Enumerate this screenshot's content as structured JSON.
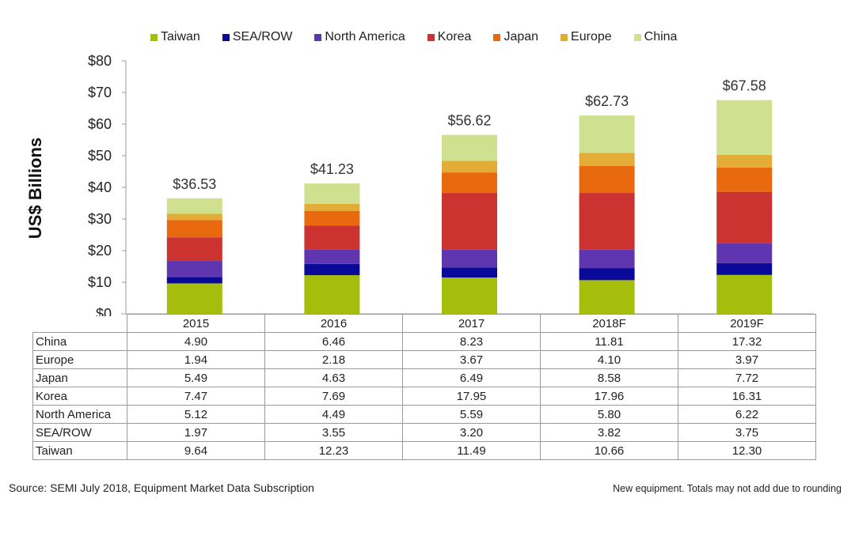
{
  "chart_data": {
    "type": "bar",
    "stacked": true,
    "title": "",
    "xlabel": "",
    "ylabel": "US$ Billions",
    "ylim": [
      0,
      80
    ],
    "yticks": [
      0,
      10,
      20,
      30,
      40,
      50,
      60,
      70,
      80
    ],
    "ytick_labels": [
      "$0",
      "$10",
      "$20",
      "$30",
      "$40",
      "$50",
      "$60",
      "$70",
      "$80"
    ],
    "grid": false,
    "legend_position": "top",
    "categories": [
      "2015",
      "2016",
      "2017",
      "2018F",
      "2019F"
    ],
    "series": [
      {
        "name": "Taiwan",
        "color": "#a5bd0b",
        "values": [
          9.64,
          12.23,
          11.49,
          10.66,
          12.3
        ]
      },
      {
        "name": "SEA/ROW",
        "color": "#0a0a9a",
        "values": [
          1.97,
          3.55,
          3.2,
          3.82,
          3.75
        ]
      },
      {
        "name": "North America",
        "color": "#5f35b0",
        "values": [
          5.12,
          4.49,
          5.59,
          5.8,
          6.22
        ]
      },
      {
        "name": "Korea",
        "color": "#cc3330",
        "values": [
          7.47,
          7.69,
          17.95,
          17.96,
          16.31
        ]
      },
      {
        "name": "Japan",
        "color": "#e8690e",
        "values": [
          5.49,
          4.63,
          6.49,
          8.58,
          7.72
        ]
      },
      {
        "name": "Europe",
        "color": "#e3ad35",
        "values": [
          1.94,
          2.18,
          3.67,
          4.1,
          3.97
        ]
      },
      {
        "name": "China",
        "color": "#cfe08f",
        "values": [
          4.9,
          6.46,
          8.23,
          11.81,
          17.32
        ]
      }
    ],
    "totals": [
      "$36.53",
      "$41.23",
      "$56.62",
      "$62.73",
      "$67.58"
    ],
    "table": {
      "row_order": [
        "China",
        "Europe",
        "Japan",
        "Korea",
        "North America",
        "SEA/ROW",
        "Taiwan"
      ],
      "rows": [
        {
          "label": "China",
          "values": [
            "4.90",
            "6.46",
            "8.23",
            "11.81",
            "17.32"
          ]
        },
        {
          "label": "Europe",
          "values": [
            "1.94",
            "2.18",
            "3.67",
            "4.10",
            "3.97"
          ]
        },
        {
          "label": "Japan",
          "values": [
            "5.49",
            "4.63",
            "6.49",
            "8.58",
            "7.72"
          ]
        },
        {
          "label": "Korea",
          "values": [
            "7.47",
            "7.69",
            "17.95",
            "17.96",
            "16.31"
          ]
        },
        {
          "label": "North America",
          "values": [
            "5.12",
            "4.49",
            "5.59",
            "5.80",
            "6.22"
          ]
        },
        {
          "label": "SEA/ROW",
          "values": [
            "1.97",
            "3.55",
            "3.20",
            "3.82",
            "3.75"
          ]
        },
        {
          "label": "Taiwan",
          "values": [
            "9.64",
            "12.23",
            "11.49",
            "10.66",
            "12.30"
          ]
        }
      ]
    }
  },
  "footer": {
    "source": "Source: SEMI July 2018, Equipment Market Data Subscription",
    "note": "New equipment. Totals may not add due to rounding"
  }
}
